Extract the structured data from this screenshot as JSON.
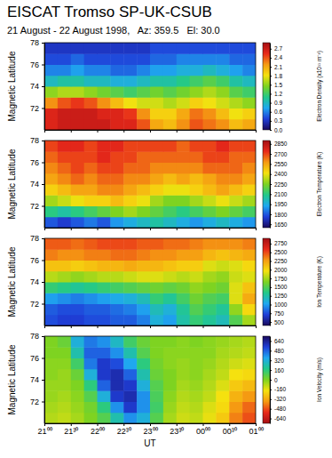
{
  "chart_data": [
    {
      "type": "heatmap",
      "title": "EISCAT Tromso SP-UK-CSUB",
      "subtitle": "21 August - 22 August 1998,   Az: 359.5   El: 30.0",
      "ylabel": "Magnetic Latitude",
      "xlim": [
        21,
        25
      ],
      "xticks": [
        {
          "value": 21,
          "label": "21⁰⁰"
        },
        {
          "value": 21.5,
          "label": "21³⁰"
        },
        {
          "value": 22,
          "label": "22⁰⁰"
        },
        {
          "value": 22.5,
          "label": "22³⁰"
        },
        {
          "value": 23,
          "label": "23⁰⁰"
        },
        {
          "value": 23.5,
          "label": "23³⁰"
        },
        {
          "value": 24,
          "label": "00⁰⁰"
        },
        {
          "value": 24.5,
          "label": "00³⁰"
        },
        {
          "value": 25,
          "label": "01⁰⁰"
        }
      ],
      "ylim": [
        70,
        78
      ],
      "yticks": [
        72,
        74,
        76,
        78
      ],
      "tick_labels": "y",
      "x_bins": [
        21,
        21.25,
        21.5,
        21.75,
        22,
        22.25,
        22.5,
        22.75,
        23,
        23.25,
        23.5,
        23.75,
        24,
        24.25,
        24.5,
        24.75,
        25
      ],
      "y_bins": [
        70,
        71,
        72,
        73,
        74,
        75,
        76,
        77,
        78
      ],
      "cells": [
        [
          2.6,
          2.7,
          2.7,
          2.7,
          2.7,
          2.6,
          2.6,
          2.4,
          2.1,
          2.0,
          2.2,
          2.4,
          2.3,
          2.2,
          2.0,
          2.1
        ],
        [
          2.6,
          2.7,
          2.7,
          2.7,
          2.6,
          2.6,
          2.5,
          2.2,
          1.9,
          1.9,
          2.1,
          2.3,
          2.2,
          2.0,
          1.8,
          1.9
        ],
        [
          2.2,
          2.4,
          2.5,
          2.4,
          2.2,
          2.0,
          1.8,
          1.7,
          1.7,
          1.6,
          1.7,
          1.9,
          1.8,
          1.7,
          1.6,
          1.5
        ],
        [
          1.5,
          1.6,
          1.6,
          1.5,
          1.4,
          1.3,
          1.2,
          1.3,
          1.4,
          1.3,
          1.4,
          1.5,
          1.6,
          1.5,
          1.3,
          1.2
        ],
        [
          0.9,
          1.0,
          1.0,
          0.9,
          0.9,
          0.8,
          0.8,
          0.9,
          1.0,
          1.0,
          1.1,
          1.2,
          1.3,
          1.2,
          1.0,
          0.9
        ],
        [
          0.6,
          0.6,
          0.7,
          0.6,
          0.6,
          0.5,
          0.5,
          0.6,
          0.7,
          0.7,
          0.8,
          0.8,
          0.9,
          0.8,
          0.7,
          0.6
        ],
        [
          0.4,
          0.4,
          0.5,
          0.4,
          0.4,
          0.4,
          0.4,
          0.4,
          0.5,
          0.5,
          0.6,
          0.6,
          0.6,
          0.6,
          0.5,
          0.5
        ],
        [
          0.3,
          0.3,
          0.3,
          0.3,
          0.3,
          0.3,
          0.3,
          0.3,
          0.4,
          0.4,
          0.4,
          0.4,
          0.4,
          0.4,
          0.4,
          0.4
        ]
      ],
      "colorbar": {
        "label": "Electron Density (x10¹¹ m⁻³)",
        "range": [
          0,
          2.9
        ],
        "ticks": [
          {
            "value": 0,
            "label": "0.0"
          },
          0.3,
          0.6,
          0.9,
          1.2,
          1.5,
          1.8,
          2.1,
          2.4,
          2.7
        ],
        "colors": [
          "#1a0a5c",
          "#1f3fd9",
          "#1fa8f0",
          "#22c98a",
          "#7ed321",
          "#f5e10f",
          "#f59a12",
          "#e8291a",
          "#a50f15"
        ]
      }
    },
    {
      "type": "heatmap",
      "ylabel": "Magnetic Latitude",
      "xlim": [
        21,
        25
      ],
      "xticks": [
        {
          "value": 21,
          "label": "21⁰⁰"
        },
        {
          "value": 21.5,
          "label": "21³⁰"
        },
        {
          "value": 22,
          "label": "22⁰⁰"
        },
        {
          "value": 22.5,
          "label": "22³⁰"
        },
        {
          "value": 23,
          "label": "23⁰⁰"
        },
        {
          "value": 23.5,
          "label": "23³⁰"
        },
        {
          "value": 24,
          "label": "00⁰⁰"
        },
        {
          "value": 24.5,
          "label": "00³⁰"
        },
        {
          "value": 25,
          "label": "01⁰⁰"
        }
      ],
      "ylim": [
        70,
        78
      ],
      "yticks": [
        72,
        74,
        76,
        78
      ],
      "tick_labels": "y",
      "x_bins": [
        21,
        21.25,
        21.5,
        21.75,
        22,
        22.25,
        22.5,
        22.75,
        23,
        23.25,
        23.5,
        23.75,
        24,
        24.25,
        24.5,
        24.75,
        25
      ],
      "y_bins": [
        70,
        71,
        72,
        73,
        74,
        75,
        76,
        77,
        78
      ],
      "cells": [
        [
          1800,
          1750,
          1800,
          1850,
          1800,
          1900,
          1950,
          2000,
          2050,
          2000,
          1950,
          1900,
          1950,
          2000,
          1950,
          1900
        ],
        [
          2100,
          2050,
          2100,
          2150,
          2200,
          2250,
          2300,
          2250,
          2200,
          2150,
          2100,
          2150,
          2200,
          2250,
          2200,
          2150
        ],
        [
          2300,
          2350,
          2400,
          2450,
          2450,
          2500,
          2450,
          2400,
          2300,
          2250,
          2250,
          2300,
          2350,
          2400,
          2350,
          2300
        ],
        [
          2450,
          2500,
          2550,
          2550,
          2600,
          2600,
          2550,
          2500,
          2450,
          2400,
          2400,
          2450,
          2500,
          2550,
          2500,
          2450
        ],
        [
          2550,
          2600,
          2650,
          2600,
          2650,
          2650,
          2600,
          2600,
          2550,
          2500,
          2550,
          2500,
          2550,
          2600,
          2600,
          2550
        ],
        [
          2600,
          2650,
          2700,
          2650,
          2700,
          2700,
          2650,
          2650,
          2600,
          2600,
          2600,
          2600,
          2650,
          2650,
          2650,
          2600
        ],
        [
          2650,
          2700,
          2700,
          2700,
          2750,
          2700,
          2700,
          2650,
          2650,
          2650,
          2650,
          2650,
          2700,
          2700,
          2650,
          2650
        ],
        [
          2700,
          2750,
          2750,
          2700,
          2750,
          2750,
          2700,
          2700,
          2700,
          2700,
          2650,
          2700,
          2700,
          2750,
          2700,
          2700
        ]
      ],
      "colorbar": {
        "label": "Electron Temperature (K)",
        "range": [
          1600,
          2900
        ],
        "ticks": [
          1650,
          1800,
          1950,
          2100,
          2250,
          2400,
          2550,
          2700,
          2850
        ],
        "colors": [
          "#1a0a5c",
          "#1f3fd9",
          "#1fa8f0",
          "#22c98a",
          "#7ed321",
          "#f5e10f",
          "#f59a12",
          "#e8291a",
          "#a50f15"
        ]
      }
    },
    {
      "type": "heatmap",
      "ylabel": "Magnetic Latitude",
      "xlim": [
        21,
        25
      ],
      "xticks": [
        {
          "value": 21,
          "label": "21⁰⁰"
        },
        {
          "value": 21.5,
          "label": "21³⁰"
        },
        {
          "value": 22,
          "label": "22⁰⁰"
        },
        {
          "value": 22.5,
          "label": "22³⁰"
        },
        {
          "value": 23,
          "label": "23⁰⁰"
        },
        {
          "value": 23.5,
          "label": "23³⁰"
        },
        {
          "value": 24,
          "label": "00⁰⁰"
        },
        {
          "value": 24.5,
          "label": "00³⁰"
        },
        {
          "value": 25,
          "label": "01⁰⁰"
        }
      ],
      "ylim": [
        70,
        78
      ],
      "yticks": [
        72,
        74,
        76,
        78
      ],
      "tick_labels": "y",
      "x_bins": [
        21,
        21.25,
        21.5,
        21.75,
        22,
        22.25,
        22.5,
        22.75,
        23,
        23.25,
        23.5,
        23.75,
        24,
        24.25,
        24.5,
        24.75,
        25
      ],
      "y_bins": [
        70,
        71,
        72,
        73,
        74,
        75,
        76,
        77,
        78
      ],
      "cells": [
        [
          750,
          700,
          700,
          750,
          750,
          800,
          800,
          900,
          1100,
          1000,
          1250,
          1400,
          1300,
          1200,
          1500,
          1750
        ],
        [
          800,
          750,
          750,
          800,
          800,
          850,
          900,
          1000,
          1200,
          1100,
          1300,
          1500,
          1400,
          1300,
          1700,
          2000
        ],
        [
          1000,
          950,
          900,
          950,
          1000,
          1050,
          1100,
          1200,
          1400,
          1300,
          1450,
          1600,
          1500,
          1450,
          1900,
          2200
        ],
        [
          1400,
          1350,
          1300,
          1350,
          1400,
          1450,
          1500,
          1550,
          1600,
          1550,
          1600,
          1700,
          1650,
          1600,
          1900,
          2100
        ],
        [
          1800,
          1750,
          1700,
          1750,
          1800,
          1800,
          1850,
          1900,
          1900,
          1850,
          1800,
          1850,
          1750,
          1700,
          1850,
          1900
        ],
        [
          2100,
          2100,
          2050,
          2100,
          2150,
          2150,
          2200,
          2150,
          2150,
          2100,
          2050,
          2050,
          1900,
          1850,
          1900,
          2000
        ],
        [
          2350,
          2300,
          2300,
          2350,
          2350,
          2400,
          2400,
          2350,
          2300,
          2300,
          2250,
          2250,
          2150,
          2100,
          2150,
          2200
        ],
        [
          2450,
          2450,
          2400,
          2450,
          2500,
          2500,
          2500,
          2450,
          2450,
          2400,
          2400,
          2350,
          2300,
          2300,
          2300,
          2350
        ]
      ],
      "colorbar": {
        "label": "Ion Temperature (K)",
        "range": [
          400,
          2900
        ],
        "ticks": [
          500,
          750,
          1000,
          1250,
          1500,
          1750,
          2000,
          2250,
          2500,
          2750
        ],
        "colors": [
          "#1a0a5c",
          "#1f3fd9",
          "#1fa8f0",
          "#22c98a",
          "#7ed321",
          "#f5e10f",
          "#f59a12",
          "#e8291a",
          "#a50f15"
        ]
      }
    },
    {
      "type": "heatmap",
      "ylabel": "Magnetic Latitude",
      "xlabel": "UT",
      "xlim": [
        21,
        25
      ],
      "xticks": [
        {
          "value": 21,
          "label": "21⁰⁰"
        },
        {
          "value": 21.5,
          "label": "21³⁰"
        },
        {
          "value": 22,
          "label": "22⁰⁰"
        },
        {
          "value": 22.5,
          "label": "22³⁰"
        },
        {
          "value": 23,
          "label": "23⁰⁰"
        },
        {
          "value": 23.5,
          "label": "23³⁰"
        },
        {
          "value": 24,
          "label": "00⁰⁰"
        },
        {
          "value": 24.5,
          "label": "00³⁰"
        },
        {
          "value": 25,
          "label": "01⁰⁰"
        }
      ],
      "ylim": [
        70,
        78
      ],
      "yticks": [
        72,
        74,
        76,
        78
      ],
      "x_bins": [
        21,
        21.25,
        21.5,
        21.75,
        22,
        22.25,
        22.5,
        22.75,
        23,
        23.25,
        23.5,
        23.75,
        24,
        24.25,
        24.5,
        24.75,
        25
      ],
      "y_bins": [
        70,
        71,
        72,
        73,
        74,
        75,
        76,
        77,
        78
      ],
      "cells": [
        [
          -80,
          -100,
          -60,
          0,
          80,
          240,
          400,
          320,
          80,
          -60,
          -120,
          -100,
          -160,
          -240,
          -400,
          -480
        ],
        [
          -60,
          -80,
          -40,
          20,
          160,
          400,
          560,
          400,
          120,
          -40,
          -100,
          -80,
          -140,
          -200,
          -360,
          -440
        ],
        [
          -40,
          -60,
          -20,
          80,
          320,
          560,
          600,
          400,
          100,
          -20,
          -80,
          -60,
          -100,
          -180,
          -300,
          -360
        ],
        [
          -40,
          -40,
          0,
          160,
          480,
          600,
          560,
          320,
          80,
          0,
          -60,
          -40,
          -80,
          -140,
          -240,
          -280
        ],
        [
          -20,
          -40,
          40,
          320,
          560,
          600,
          480,
          240,
          40,
          0,
          -40,
          -20,
          -60,
          -100,
          -180,
          -200
        ],
        [
          -20,
          -20,
          120,
          440,
          560,
          520,
          360,
          160,
          20,
          -20,
          -40,
          -20,
          -40,
          -80,
          -120,
          -140
        ],
        [
          0,
          0,
          240,
          480,
          480,
          400,
          240,
          80,
          0,
          -20,
          -20,
          -20,
          -20,
          -60,
          -80,
          -100
        ],
        [
          0,
          40,
          320,
          440,
          400,
          280,
          120,
          40,
          0,
          0,
          -20,
          0,
          -20,
          -40,
          -60,
          -80
        ]
      ],
      "colorbar": {
        "label": "Ion Velocity (m/s)",
        "range": [
          -720,
          720
        ],
        "ticks": [
          -640,
          -480,
          -320,
          -160,
          0,
          160,
          320,
          480,
          640
        ],
        "colors": [
          "#a50f15",
          "#e8291a",
          "#f59a12",
          "#f5e10f",
          "#7ed321",
          "#22c98a",
          "#1fa8f0",
          "#1f3fd9",
          "#1a0a5c"
        ]
      }
    }
  ]
}
